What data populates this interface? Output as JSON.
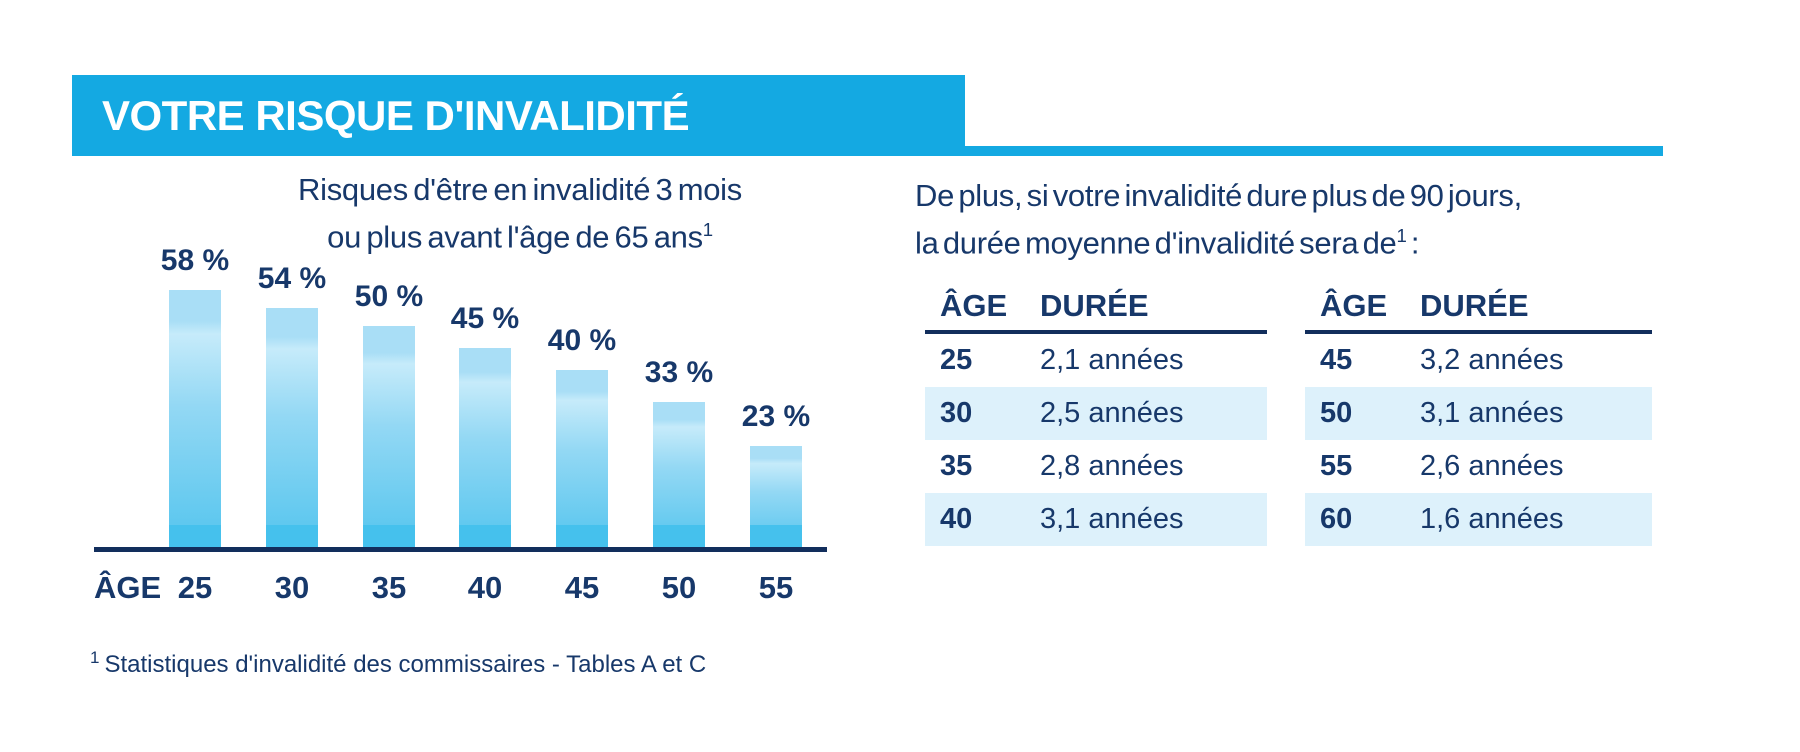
{
  "colors": {
    "accent_blue": "#14A9E2",
    "navy_text": "#17386A",
    "navy_dark": "#122E5C",
    "row_highlight": "#DDF1FB",
    "bar_top": "#A9DEF6",
    "bar_light": "#C6EBFA",
    "bar_mid": "#93D8F4",
    "bar_deep": "#5FC8EF",
    "bar_bottom_band": "#45C1ED"
  },
  "banner": {
    "title": "VOTRE RISQUE D'INVALIDITÉ"
  },
  "chart": {
    "title_line1": "Risques d'être en invalidité 3 mois",
    "title_line2": "ou plus avant l'âge de 65 ans",
    "footnote_ref": "1",
    "axis_label": "ÂGE"
  },
  "right_panel": {
    "intro_line1": "De plus, si votre invalidité dure plus de 90 jours,",
    "intro_line2": "la durée moyenne d'invalidité sera de",
    "footnote_ref": "1",
    "intro_suffix": " :"
  },
  "tables": {
    "headers": [
      "ÂGE",
      "DURÉE"
    ],
    "left": [
      {
        "age": "25",
        "duration": "2,1 années"
      },
      {
        "age": "30",
        "duration": "2,5 années"
      },
      {
        "age": "35",
        "duration": "2,8 années"
      },
      {
        "age": "40",
        "duration": "3,1 années"
      }
    ],
    "right": [
      {
        "age": "45",
        "duration": "3,2 années"
      },
      {
        "age": "50",
        "duration": "3,1 années"
      },
      {
        "age": "55",
        "duration": "2,6 années"
      },
      {
        "age": "60",
        "duration": "1,6 années"
      }
    ]
  },
  "footnote": {
    "ref": "1",
    "text": "Statistiques d'invalidité des commissaires - Tables A et C"
  },
  "chart_data": [
    {
      "type": "bar",
      "title": "Risques d'être en invalidité 3 mois ou plus avant l'âge de 65 ans¹",
      "categories": [
        "25",
        "30",
        "35",
        "40",
        "45",
        "50",
        "55"
      ],
      "values": [
        58,
        54,
        50,
        45,
        40,
        33,
        23
      ],
      "value_labels": [
        "58 %",
        "54 %",
        "50 %",
        "45 %",
        "40 %",
        "33 %",
        "23 %"
      ],
      "xlabel": "ÂGE",
      "ylabel": "",
      "ylim": [
        0,
        65
      ],
      "grid": false,
      "legend": false
    },
    {
      "type": "table",
      "columns": [
        "ÂGE",
        "DURÉE"
      ],
      "rows": [
        [
          "25",
          "2,1 années"
        ],
        [
          "30",
          "2,5 années"
        ],
        [
          "35",
          "2,8 années"
        ],
        [
          "40",
          "3,1 années"
        ]
      ]
    },
    {
      "type": "table",
      "columns": [
        "ÂGE",
        "DURÉE"
      ],
      "rows": [
        [
          "45",
          "3,2 années"
        ],
        [
          "50",
          "3,1 années"
        ],
        [
          "55",
          "2,6 années"
        ],
        [
          "60",
          "1,6 années"
        ]
      ]
    }
  ]
}
